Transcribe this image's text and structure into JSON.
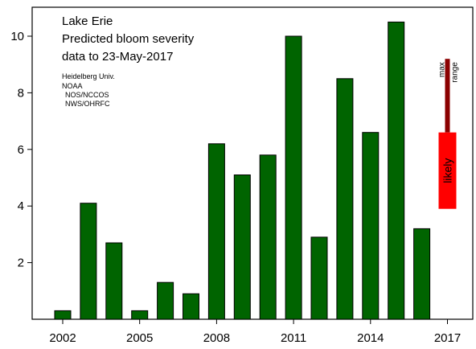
{
  "chart_data": {
    "type": "bar",
    "title_lines": [
      "Lake Erie",
      "Predicted bloom severity",
      "data to 23-May-2017"
    ],
    "source_lines": [
      "Heidelberg Univ.",
      "NOAA",
      "NOS/NCCOS",
      "NWS/OHRFC"
    ],
    "xlabel": "",
    "ylabel": "",
    "ylim": [
      0,
      11
    ],
    "yticks": [
      2,
      4,
      6,
      8,
      10
    ],
    "xtick_years": [
      2002,
      2005,
      2008,
      2011,
      2014,
      2017
    ],
    "bar_color": "#006400",
    "years": [
      2002,
      2003,
      2004,
      2005,
      2006,
      2007,
      2008,
      2009,
      2010,
      2011,
      2012,
      2013,
      2014,
      2015,
      2016
    ],
    "values": [
      0.3,
      4.1,
      2.7,
      0.3,
      1.3,
      0.9,
      6.2,
      5.1,
      5.8,
      10.0,
      2.9,
      8.5,
      6.6,
      10.5,
      3.2
    ],
    "forecast": {
      "year": 2017,
      "likely_range": [
        3.9,
        6.6
      ],
      "likely_label": "likely",
      "likely_color": "#ff0000",
      "max_range": [
        6.6,
        9.2
      ],
      "max_range_labels": [
        "max",
        "range"
      ],
      "max_range_color": "#8b0000"
    },
    "grid": false,
    "legend": "none"
  }
}
